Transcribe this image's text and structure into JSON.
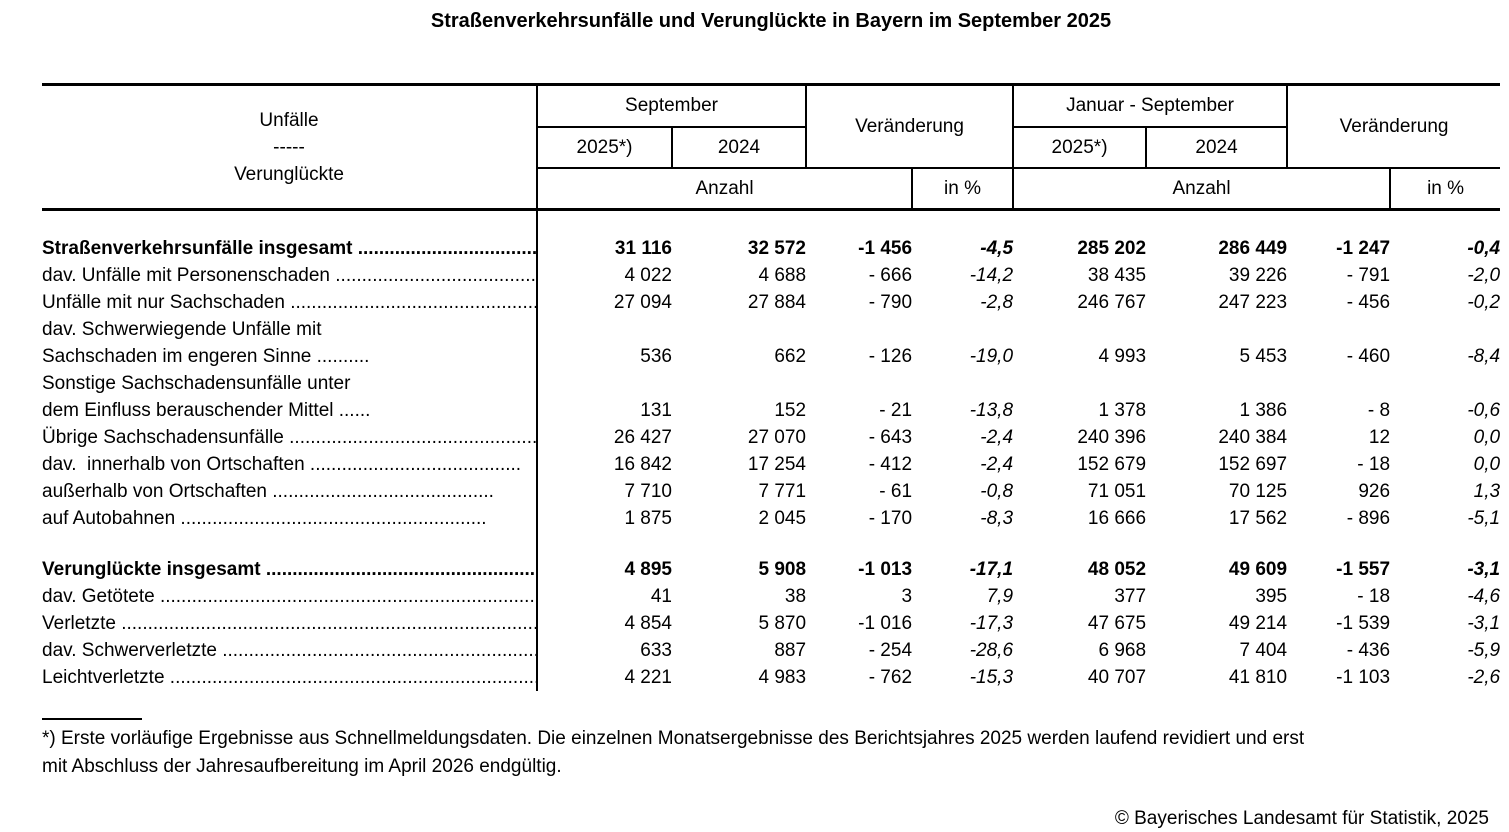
{
  "title": "Straßenverkehrsunfälle und Verunglückte in Bayern im September 2025",
  "header": {
    "unfaelle_label": "Unfälle",
    "separator": "-----",
    "verunglueckte_label": "Verunglückte",
    "september": "September",
    "januar_september": "Januar - September",
    "veraenderung": "Veränderung",
    "year_2025": "2025*)",
    "year_2024": "2024",
    "anzahl": "Anzahl",
    "in_percent": "in %"
  },
  "rows": [
    {
      "style": "total",
      "indent": 0,
      "label": "Straßenverkehrsunfälle insgesamt .............................................",
      "values": [
        "31 116",
        "32 572",
        "-1 456",
        "-4,5",
        "285 202",
        "286 449",
        "-1 247",
        "-0,4"
      ]
    },
    {
      "style": "normal",
      "indent": 0,
      "label": "dav. Unfälle mit Personenschaden ..................................................",
      "values": [
        "4 022",
        "4 688",
        "- 666",
        "-14,2",
        "38 435",
        "39 226",
        "- 791",
        "-2,0"
      ]
    },
    {
      "style": "normal",
      "indent": 1,
      "label": "Unfälle mit nur Sachschaden ..................................................",
      "values": [
        "27 094",
        "27 884",
        "- 790",
        "-2,8",
        "246 767",
        "247 223",
        "- 456",
        "-0,2"
      ]
    },
    {
      "style": "normal",
      "indent": 1,
      "label": "dav. Schwerwiegende Unfälle mit",
      "values": [
        "",
        "",
        "",
        "",
        "",
        "",
        "",
        ""
      ]
    },
    {
      "style": "normal",
      "indent": 5,
      "label": "Sachschaden im engeren Sinne ..........",
      "values": [
        "536",
        "662",
        "- 126",
        "-19,0",
        "4 993",
        "5 453",
        "- 460",
        "-8,4"
      ]
    },
    {
      "style": "normal",
      "indent": 2,
      "label": "Sonstige Sachschadensunfälle unter",
      "values": [
        "",
        "",
        "",
        "",
        "",
        "",
        "",
        ""
      ]
    },
    {
      "style": "normal",
      "indent": 4,
      "label": "dem Einfluss berauschender Mittel ......",
      "values": [
        "131",
        "152",
        "- 21",
        "-13,8",
        "1 378",
        "1 386",
        "- 8",
        "-0,6"
      ]
    },
    {
      "style": "normal",
      "indent": 2,
      "label": "Übrige Sachschadensunfälle .................................................",
      "values": [
        "26 427",
        "27 070",
        "- 643",
        "-2,4",
        "240 396",
        "240 384",
        "12",
        "0,0"
      ]
    },
    {
      "style": "normal",
      "indent": 2,
      "label": "dav.  innerhalb von Ortschaften ........................................",
      "values": [
        "16 842",
        "17 254",
        "- 412",
        "-2,4",
        "152 679",
        "152 697",
        "- 18",
        "0,0"
      ]
    },
    {
      "style": "normal",
      "indent": 6,
      "label": "außerhalb von Ortschaften ..........................................",
      "values": [
        "7 710",
        "7 771",
        "- 61",
        "-0,8",
        "71 051",
        "70 125",
        "926",
        "1,3"
      ]
    },
    {
      "style": "normal",
      "indent": 6,
      "label": "auf Autobahnen ..........................................................",
      "values": [
        "1 875",
        "2 045",
        "- 170",
        "-8,3",
        "16 666",
        "17 562",
        "- 896",
        "-5,1"
      ]
    },
    {
      "style": "total",
      "indent": 0,
      "label": "Verunglückte insgesamt .......................................................................",
      "values": [
        "4 895",
        "5 908",
        "-1 013",
        "-17,1",
        "48 052",
        "49 609",
        "-1 557",
        "-3,1"
      ]
    },
    {
      "style": "normal",
      "indent": 0,
      "label": "dav. Getötete .......................................................................................................",
      "values": [
        "41",
        "38",
        "3",
        "7,9",
        "377",
        "395",
        "- 18",
        "-4,6"
      ]
    },
    {
      "style": "normal",
      "indent": 1,
      "label": "Verletzte .......................................................................................................",
      "values": [
        "4 854",
        "5 870",
        "-1 016",
        "-17,3",
        "47 675",
        "49 214",
        "-1 539",
        "-3,1"
      ]
    },
    {
      "style": "normal",
      "indent": 1,
      "label": "dav. Schwerverletzte ........................................................................",
      "values": [
        "633",
        "887",
        "- 254",
        "-28,6",
        "6 968",
        "7 404",
        "- 436",
        "-5,9"
      ]
    },
    {
      "style": "normal",
      "indent": 3,
      "label": "Leichtverletzte ........................................................................",
      "values": [
        "4 221",
        "4 983",
        "- 762",
        "-15,3",
        "40 707",
        "41 810",
        "-1 103",
        "-2,6"
      ]
    }
  ],
  "footnote": {
    "line1": "*) Erste vorläufige Ergebnisse aus Schnellmeldungsdaten. Die einzelnen Monatsergebnisse des Berichtsjahres 2025 werden laufend revidiert und erst",
    "line2": "mit Abschluss der Jahresaufbereitung im April 2026 endgültig."
  },
  "copyright": "© Bayerisches Landesamt für Statistik, 2025"
}
